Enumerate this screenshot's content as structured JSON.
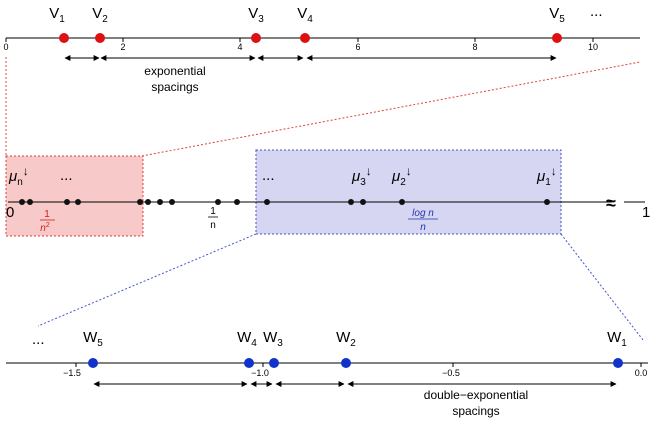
{
  "top_axis": {
    "tick_labels": [
      "0",
      "2",
      "4",
      "6",
      "8",
      "10"
    ],
    "points": [
      {
        "label": "V",
        "sub": "1"
      },
      {
        "label": "V",
        "sub": "2"
      },
      {
        "label": "V",
        "sub": "3"
      },
      {
        "label": "V",
        "sub": "4"
      },
      {
        "label": "V",
        "sub": "5"
      }
    ],
    "trailing": "...",
    "annotation_line1": "exponential",
    "annotation_line2": "spacings",
    "point_color": "#dd1111"
  },
  "middle_axis": {
    "left_label": "0",
    "right_label": "1",
    "break_symbol": "≈",
    "one_over_n_num": "1",
    "one_over_n_den": "n",
    "inv_n2_num": "1",
    "inv_n2_den": "n",
    "inv_n2_exp": "2",
    "logn_num": "log n",
    "logn_den": "n",
    "mu_symbol": "μ",
    "mu_n_sub": "n",
    "mu_3_sub": "3",
    "mu_2_sub": "2",
    "mu_1_sub": "1",
    "arrow": "↓",
    "dots_left": "...",
    "dots_right": "...",
    "left_box_color": "#f7c9c9",
    "right_box_color": "#d6d6f2"
  },
  "bottom_axis": {
    "tick_labels": [
      "−1.5",
      "−1.0",
      "−0.5",
      "0.0"
    ],
    "points": [
      {
        "label": "W",
        "sub": "5"
      },
      {
        "label": "W",
        "sub": "4"
      },
      {
        "label": "W",
        "sub": "3"
      },
      {
        "label": "W",
        "sub": "2"
      },
      {
        "label": "W",
        "sub": "1"
      }
    ],
    "leading": "...",
    "annotation_line1": "double−exponential",
    "annotation_line2": "spacings",
    "point_color": "#1133cc"
  }
}
